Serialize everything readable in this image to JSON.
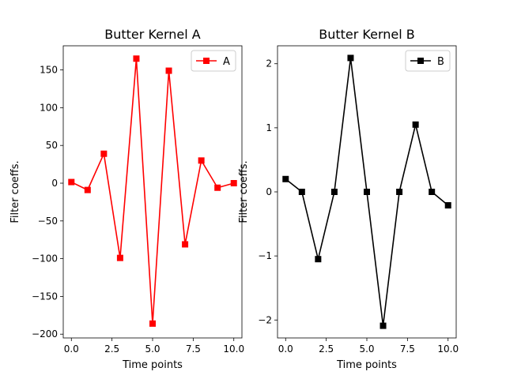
{
  "chart_data": [
    {
      "type": "line",
      "title": "Butter Kernel A",
      "xlabel": "Time points",
      "ylabel": "Filter coeffs.",
      "xlim": [
        -0.5,
        10.5
      ],
      "ylim": [
        -205,
        182
      ],
      "xticks": [
        0,
        2.5,
        5,
        7.5,
        10
      ],
      "xtick_labels": [
        "0.0",
        "2.5",
        "5.0",
        "7.5",
        "10.0"
      ],
      "yticks": [
        -200,
        -150,
        -100,
        -50,
        0,
        50,
        100,
        150
      ],
      "ytick_labels": [
        "−200",
        "−150",
        "−100",
        "−50",
        "0",
        "50",
        "100",
        "150"
      ],
      "grid": false,
      "legend_position": "top-right",
      "series": [
        {
          "name": "A",
          "color": "#ff0000",
          "marker": "square",
          "x": [
            0,
            1,
            2,
            3,
            4,
            5,
            6,
            7,
            8,
            9,
            10
          ],
          "y": [
            1.5,
            -9,
            39,
            -99,
            165,
            -186,
            149,
            -81,
            30,
            -6,
            0
          ]
        }
      ]
    },
    {
      "type": "line",
      "title": "Butter Kernel B",
      "xlabel": "Time points",
      "ylabel": "Filter coeffs.",
      "xlim": [
        -0.5,
        10.5
      ],
      "ylim": [
        -2.28,
        2.28
      ],
      "xticks": [
        0,
        2.5,
        5,
        7.5,
        10
      ],
      "xtick_labels": [
        "0.0",
        "2.5",
        "5.0",
        "7.5",
        "10.0"
      ],
      "yticks": [
        -2,
        -1,
        0,
        1,
        2
      ],
      "ytick_labels": [
        "−2",
        "−1",
        "0",
        "1",
        "2"
      ],
      "grid": false,
      "legend_position": "top-right",
      "series": [
        {
          "name": "B",
          "color": "#000000",
          "marker": "square",
          "x": [
            0,
            1,
            2,
            3,
            4,
            5,
            6,
            7,
            8,
            9,
            10
          ],
          "y": [
            0.2,
            0,
            -1.05,
            0,
            2.09,
            0,
            -2.09,
            0,
            1.05,
            0,
            -0.21
          ]
        }
      ]
    }
  ]
}
